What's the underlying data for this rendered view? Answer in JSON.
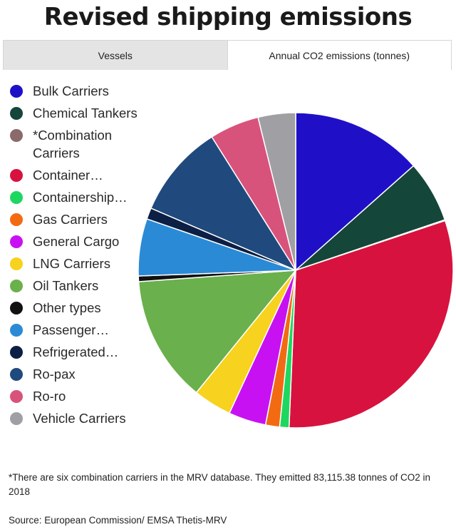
{
  "title": "Revised shipping emissions",
  "tabs": [
    {
      "label": "Vessels",
      "active": false
    },
    {
      "label": "Annual CO2 emissions (tonnes)",
      "active": true
    }
  ],
  "chart_data": {
    "type": "pie",
    "title": "Revised shipping emissions",
    "legend_position": "left",
    "slices": [
      {
        "label": "Bulk Carriers",
        "value": 14.0,
        "color": "#1f10c8"
      },
      {
        "label": "Chemical Tankers",
        "value": 6.6,
        "color": "#14463a"
      },
      {
        "label": "*Combination Carriers",
        "value": 0.1,
        "color": "#8a6a6a"
      },
      {
        "label": "Container…",
        "value": 32.0,
        "color": "#d8123e"
      },
      {
        "label": "Containership…",
        "value": 1.0,
        "color": "#1ed760"
      },
      {
        "label": "Gas Carriers",
        "value": 1.5,
        "color": "#f26b12"
      },
      {
        "label": "General Cargo",
        "value": 4.0,
        "color": "#c811f2"
      },
      {
        "label": "LNG Carriers",
        "value": 4.1,
        "color": "#f7d21e"
      },
      {
        "label": "Oil Tankers",
        "value": 13.5,
        "color": "#6ab04c"
      },
      {
        "label": "Other types",
        "value": 0.6,
        "color": "#111111"
      },
      {
        "label": "Passenger…",
        "value": 6.1,
        "color": "#2a8ad6"
      },
      {
        "label": "Refrigerated…",
        "value": 1.2,
        "color": "#0c1f44"
      },
      {
        "label": "Ro-pax",
        "value": 10.0,
        "color": "#204a7d"
      },
      {
        "label": "Ro-ro",
        "value": 5.3,
        "color": "#d8537c"
      },
      {
        "label": "Vehicle Carriers",
        "value": 4.0,
        "color": "#a0a0a4"
      }
    ]
  },
  "footnote": "*There are six combination carriers in the MRV database. They emitted 83,115.38 tonnes of CO2 in 2018",
  "source": "Source: European Commission/ EMSA Thetis-MRV"
}
